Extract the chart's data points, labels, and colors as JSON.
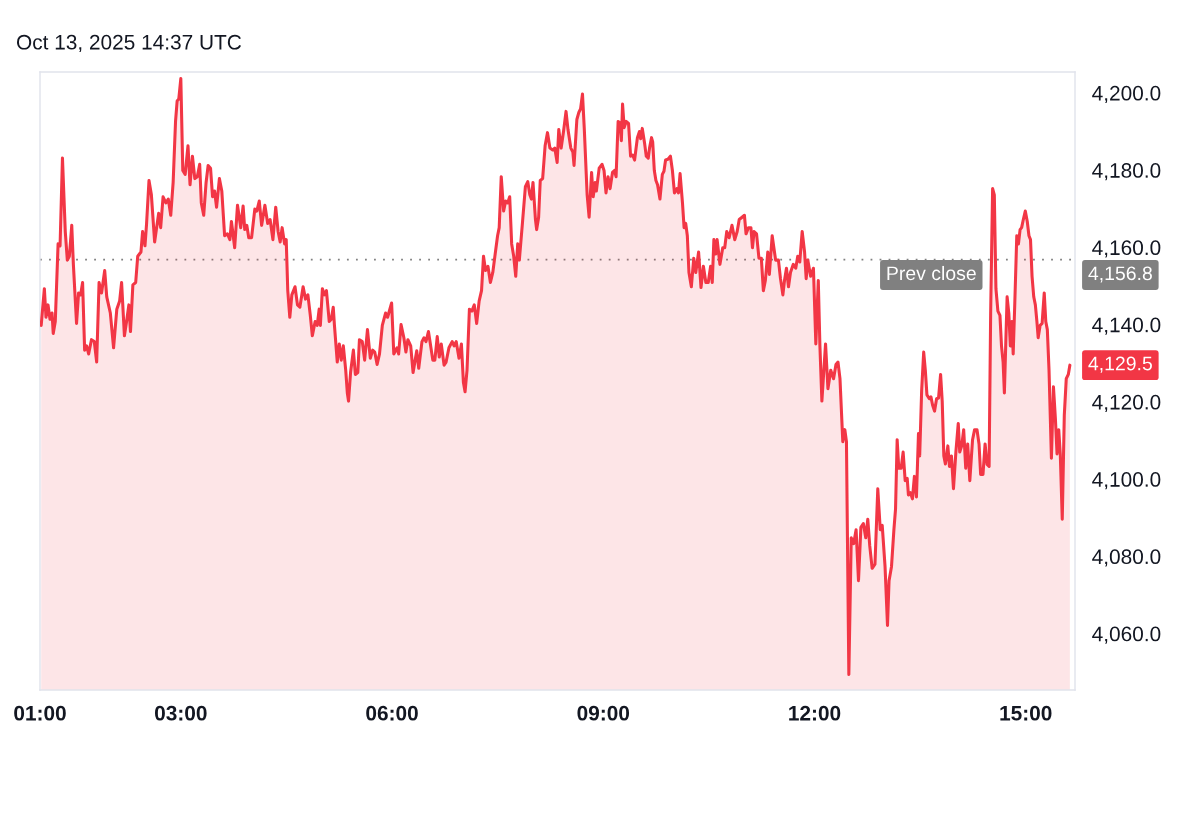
{
  "chart_data": {
    "type": "area",
    "color": "#f23645",
    "annotations": [
      "Oct 13, 2025 14:37 UTC",
      {
        "text": "4,156.8",
        "x": 15.627,
        "y": 4156.8
      },
      {
        "text": "4,129.5",
        "x": 15.627,
        "y": 4129.5
      }
    ],
    "ref_lines": [
      {
        "axis": "y",
        "value": 4156.8,
        "label": "Prev close",
        "color": "#808080",
        "line_style": "dotted"
      }
    ],
    "xlim": [
      1.0,
      15.7
    ],
    "ylim": [
      4045.4,
      4205.4
    ],
    "xticks": [
      {
        "value": 1,
        "label": "01:00"
      },
      {
        "value": 3,
        "label": "03:00"
      },
      {
        "value": 6,
        "label": "06:00"
      },
      {
        "value": 9,
        "label": "09:00"
      },
      {
        "value": 12,
        "label": "12:00"
      },
      {
        "value": 15,
        "label": "15:00"
      }
    ],
    "yticks": [
      {
        "value": 4060,
        "label": "4,060.0"
      },
      {
        "value": 4080,
        "label": "4,080.0"
      },
      {
        "value": 4100,
        "label": "4,100.0"
      },
      {
        "value": 4120,
        "label": "4,120.0"
      },
      {
        "value": 4140,
        "label": "4,140.0"
      },
      {
        "value": 4160,
        "label": "4,160.0"
      },
      {
        "value": 4180,
        "label": "4,180.0"
      },
      {
        "value": 4200,
        "label": "4,200.0"
      }
    ],
    "x": [
      1.017,
      1.062,
      1.085,
      1.114,
      1.142,
      1.171,
      1.188,
      1.217,
      1.257,
      1.285,
      1.319,
      1.359,
      1.388,
      1.417,
      1.451,
      1.474,
      1.519,
      1.548,
      1.577,
      1.605,
      1.634,
      1.662,
      1.691,
      1.731,
      1.771,
      1.805,
      1.839,
      1.874,
      1.919,
      1.948,
      1.999,
      2.045,
      2.091,
      2.131,
      2.159,
      2.199,
      2.234,
      2.262,
      2.285,
      2.319,
      2.359,
      2.388,
      2.434,
      2.457,
      2.491,
      2.514,
      2.548,
      2.582,
      2.628,
      2.685,
      2.714,
      2.748,
      2.788,
      2.822,
      2.857,
      2.891,
      2.925,
      2.948,
      2.971,
      3.0,
      3.028,
      3.062,
      3.102,
      3.131,
      3.165,
      3.199,
      3.234,
      3.268,
      3.291,
      3.325,
      3.359,
      3.388,
      3.422,
      3.451,
      3.479,
      3.508,
      3.548,
      3.582,
      3.622,
      3.662,
      3.697,
      3.719,
      3.765,
      3.805,
      3.851,
      3.885,
      3.908,
      3.937,
      3.965,
      4.005,
      4.051,
      4.079,
      4.114,
      4.148,
      4.194,
      4.234,
      4.268,
      4.308,
      4.348,
      4.382,
      4.411,
      4.439,
      4.474,
      4.497,
      4.519,
      4.548,
      4.577,
      4.622,
      4.657,
      4.691,
      4.737,
      4.771,
      4.805,
      4.839,
      4.868,
      4.908,
      4.937,
      4.965,
      4.982,
      5.011,
      5.039,
      5.068,
      5.108,
      5.137,
      5.165,
      5.182,
      5.222,
      5.251,
      5.279,
      5.308,
      5.342,
      5.365,
      5.382,
      5.411,
      5.451,
      5.479,
      5.514,
      5.537,
      5.577,
      5.611,
      5.651,
      5.691,
      5.725,
      5.754,
      5.788,
      5.822,
      5.862,
      5.908,
      5.937,
      5.994,
      6.025,
      6.071,
      6.094,
      6.128,
      6.168,
      6.197,
      6.225,
      6.265,
      6.299,
      6.351,
      6.379,
      6.425,
      6.454,
      6.482,
      6.517,
      6.539,
      6.579,
      6.608,
      6.642,
      6.671,
      6.699,
      6.739,
      6.768,
      6.808,
      6.854,
      6.882,
      6.911,
      6.951,
      6.985,
      7.014,
      7.037,
      7.065,
      7.099,
      7.134,
      7.168,
      7.202,
      7.237,
      7.271,
      7.299,
      7.328,
      7.362,
      7.397,
      7.431,
      7.465,
      7.499,
      7.522,
      7.551,
      7.585,
      7.614,
      7.642,
      7.671,
      7.699,
      7.728,
      7.757,
      7.785,
      7.808,
      7.854,
      7.894,
      7.928,
      7.957,
      7.979,
      8.002,
      8.037,
      8.054,
      8.082,
      8.105,
      8.139,
      8.174,
      8.208,
      8.242,
      8.282,
      8.311,
      8.345,
      8.368,
      8.402,
      8.437,
      8.471,
      8.499,
      8.539,
      8.568,
      8.585,
      8.625,
      8.654,
      8.677,
      8.705,
      8.731,
      8.771,
      8.799,
      8.834,
      8.857,
      8.885,
      8.902,
      8.942,
      8.982,
      9.011,
      9.039,
      9.068,
      9.097,
      9.131,
      9.159,
      9.182,
      9.211,
      9.239,
      9.257,
      9.274,
      9.297,
      9.325,
      9.359,
      9.388,
      9.417,
      9.445,
      9.485,
      9.514,
      9.531,
      9.554,
      9.588,
      9.611,
      9.639,
      9.657,
      9.685,
      9.702,
      9.725,
      9.748,
      9.771,
      9.805,
      9.839,
      9.862,
      9.885,
      9.919,
      9.954,
      9.982,
      10.011,
      10.045,
      10.068,
      10.091,
      10.125,
      10.148,
      10.171,
      10.194,
      10.217,
      10.251,
      10.285,
      10.314,
      10.354,
      10.388,
      10.422,
      10.457,
      10.491,
      10.525,
      10.548,
      10.571,
      10.599,
      10.617,
      10.657,
      10.697,
      10.725,
      10.754,
      10.788,
      10.828,
      10.868,
      10.902,
      10.931,
      10.971,
      11.005,
      11.028,
      11.062,
      11.097,
      11.119,
      11.142,
      11.177,
      11.211,
      11.245,
      11.274,
      11.302,
      11.337,
      11.359,
      11.399,
      11.448,
      11.488,
      11.517,
      11.551,
      11.574,
      11.602,
      11.631,
      11.659,
      11.699,
      11.734,
      11.762,
      11.791,
      11.825,
      11.859,
      11.882,
      11.905,
      11.945,
      11.985,
      12.019,
      12.054,
      12.077,
      12.105,
      12.157,
      12.191,
      12.231,
      12.271,
      12.305,
      12.334,
      12.362,
      12.402,
      12.431,
      12.454,
      12.488,
      12.522,
      12.557,
      12.591,
      12.625,
      12.659,
      12.694,
      12.728,
      12.757,
      12.785,
      12.819,
      12.859,
      12.899,
      12.934,
      12.962,
      13.002,
      13.037,
      13.059,
      13.094,
      13.128,
      13.151,
      13.174,
      13.197,
      13.231,
      13.259,
      13.288,
      13.317,
      13.334,
      13.362,
      13.391,
      13.419,
      13.448,
      13.477,
      13.494,
      13.522,
      13.551,
      13.574,
      13.597,
      13.631,
      13.654,
      13.677,
      13.705,
      13.734,
      13.762,
      13.791,
      13.814,
      13.837,
      13.859,
      13.894,
      13.917,
      13.945,
      13.974,
      14.008,
      14.042,
      14.063,
      14.091,
      14.119,
      14.148,
      14.176,
      14.206,
      14.245,
      14.274,
      14.308,
      14.337,
      14.36,
      14.393,
      14.423,
      14.451,
      14.48,
      14.502,
      14.53,
      14.554,
      14.577,
      14.605,
      14.634,
      14.656,
      14.679,
      14.697,
      14.719,
      14.736,
      14.76,
      14.782,
      14.805,
      14.822,
      14.845,
      14.873,
      14.897,
      14.92,
      14.942,
      14.966,
      14.994,
      15.022,
      15.046,
      15.068,
      15.09,
      15.114,
      15.137,
      15.159,
      15.177,
      15.205,
      15.233,
      15.263,
      15.285,
      15.307,
      15.331,
      15.365,
      15.394,
      15.422,
      15.445,
      15.469,
      15.491,
      15.519,
      15.548,
      15.576,
      15.605,
      15.627
    ],
    "values": [
      4139.8,
      4149.3,
      4141.9,
      4145.1,
      4141.4,
      4143.0,
      4137.7,
      4140.8,
      4160.9,
      4160.4,
      4183.1,
      4164.1,
      4156.7,
      4157.7,
      4165.7,
      4155.6,
      4140.3,
      4148.2,
      4147.7,
      4150.9,
      4133.4,
      4134.5,
      4132.4,
      4136.1,
      4135.6,
      4130.3,
      4150.9,
      4148.2,
      4154.0,
      4147.2,
      4143.0,
      4134.0,
      4144.0,
      4146.1,
      4150.9,
      4137.1,
      4141.4,
      4145.1,
      4138.2,
      4150.3,
      4150.9,
      4157.7,
      4158.8,
      4164.1,
      4160.4,
      4166.2,
      4177.3,
      4173.6,
      4161.4,
      4168.8,
      4165.1,
      4173.1,
      4171.5,
      4172.5,
      4168.3,
      4176.8,
      4192.6,
      4197.9,
      4198.4,
      4203.7,
      4179.9,
      4178.9,
      4186.3,
      4176.2,
      4183.6,
      4177.8,
      4178.3,
      4181.5,
      4171.5,
      4168.3,
      4176.8,
      4181.2,
      4180.5,
      4173.1,
      4174.6,
      4170.4,
      4177.8,
      4174.6,
      4163.0,
      4163.5,
      4162.0,
      4166.7,
      4159.9,
      4170.9,
      4165.1,
      4170.7,
      4164.6,
      4165.7,
      4162.5,
      4162.5,
      4169.9,
      4169.4,
      4172.0,
      4165.7,
      4170.9,
      4166.2,
      4167.2,
      4162.0,
      4170.4,
      4164.1,
      4161.4,
      4165.1,
      4160.9,
      4162.0,
      4148.8,
      4141.9,
      4147.7,
      4149.8,
      4145.1,
      4144.5,
      4149.8,
      4146.6,
      4147.7,
      4142.4,
      4137.1,
      4140.8,
      4139.8,
      4144.0,
      4139.8,
      4149.3,
      4147.7,
      4148.8,
      4140.8,
      4141.4,
      4144.5,
      4139.8,
      4130.3,
      4135.0,
      4130.8,
      4134.5,
      4128.2,
      4122.3,
      4120.2,
      4127.6,
      4133.4,
      4127.1,
      4127.6,
      4136.1,
      4135.6,
      4130.8,
      4138.7,
      4131.3,
      4133.4,
      4132.9,
      4129.7,
      4132.4,
      4139.8,
      4143.0,
      4141.9,
      4145.6,
      4132.4,
      4134.0,
      4132.4,
      4140.0,
      4136.6,
      4132.9,
      4136.1,
      4134.5,
      4127.6,
      4133.2,
      4128.7,
      4135.6,
      4136.6,
      4135.6,
      4138.2,
      4135.6,
      4130.8,
      4130.8,
      4136.9,
      4131.6,
      4135.0,
      4129.5,
      4130.3,
      4134.0,
      4135.6,
      4134.5,
      4135.6,
      4131.3,
      4135.0,
      4125.0,
      4122.6,
      4128.2,
      4144.0,
      4143.5,
      4145.1,
      4140.3,
      4146.1,
      4148.8,
      4157.7,
      4154.0,
      4155.1,
      4150.9,
      4153.5,
      4158.3,
      4163.0,
      4165.1,
      4178.3,
      4169.4,
      4172.0,
      4171.5,
      4173.1,
      4160.9,
      4157.7,
      4152.5,
      4160.9,
      4156.7,
      4166.7,
      4175.7,
      4177.0,
      4173.6,
      4172.5,
      4176.8,
      4167.2,
      4164.6,
      4167.8,
      4177.3,
      4177.8,
      4186.3,
      4189.7,
      4185.7,
      4185.2,
      4185.7,
      4182.0,
      4190.5,
      4185.7,
      4190.2,
      4195.2,
      4190.5,
      4185.7,
      4184.7,
      4181.2,
      4193.1,
      4195.0,
      4195.8,
      4199.7,
      4190.5,
      4173.6,
      4167.8,
      4179.4,
      4173.1,
      4176.8,
      4174.6,
      4180.5,
      4181.5,
      4179.9,
      4174.1,
      4178.3,
      4175.2,
      4179.4,
      4179.9,
      4178.3,
      4192.6,
      4192.1,
      4187.6,
      4197.1,
      4191.0,
      4192.6,
      4192.1,
      4183.6,
      4183.9,
      4182.6,
      4188.4,
      4190.0,
      4188.1,
      4190.8,
      4186.8,
      4183.6,
      4183.1,
      4185.7,
      4188.4,
      4187.3,
      4179.9,
      4177.3,
      4176.2,
      4172.5,
      4178.9,
      4179.7,
      4182.6,
      4182.8,
      4183.6,
      4179.9,
      4174.1,
      4175.2,
      4174.1,
      4179.1,
      4171.5,
      4165.1,
      4166.2,
      4163.0,
      4153.5,
      4149.8,
      4157.2,
      4153.5,
      4158.8,
      4149.6,
      4155.1,
      4150.9,
      4150.9,
      4155.1,
      4150.9,
      4162.0,
      4158.3,
      4162.0,
      4155.6,
      4159.9,
      4159.9,
      4164.1,
      4162.5,
      4165.7,
      4162.0,
      4164.1,
      4167.2,
      4167.8,
      4168.3,
      4163.5,
      4165.1,
      4165.1,
      4159.9,
      4164.1,
      4163.5,
      4157.2,
      4157.2,
      4148.8,
      4151.4,
      4158.8,
      4153.0,
      4163.0,
      4156.7,
      4156.7,
      4151.9,
      4147.7,
      4151.4,
      4154.6,
      4149.8,
      4153.5,
      4155.6,
      4154.6,
      4157.7,
      4156.2,
      4164.1,
      4158.8,
      4151.9,
      4156.7,
      4152.5,
      4154.6,
      4135.0,
      4151.4,
      4134.5,
      4120.2,
      4135.0,
      4123.4,
      4128.2,
      4126.0,
      4129.7,
      4130.3,
      4126.0,
      4109.7,
      4112.8,
      4109.7,
      4049.4,
      4084.8,
      4083.3,
      4086.9,
      4073.7,
      4087.5,
      4088.5,
      4084.8,
      4089.6,
      4082.7,
      4076.9,
      4078.0,
      4097.5,
      4086.9,
      4088.0,
      4077.4,
      4062.1,
      4073.7,
      4077.4,
      4086.9,
      4092.2,
      4110.2,
      4102.8,
      4102.8,
      4107.0,
      4099.6,
      4100.2,
      4095.9,
      4096.5,
      4094.9,
      4100.7,
      4095.4,
      4111.8,
      4106.0,
      4122.9,
      4132.9,
      4128.2,
      4121.8,
      4120.8,
      4121.3,
      4119.2,
      4117.6,
      4120.8,
      4121.0,
      4127.1,
      4120.2,
      4106.0,
      4103.9,
      4108.6,
      4103.3,
      4106.0,
      4097.5,
      4107.0,
      4114.4,
      4107.0,
      4108.6,
      4112.8,
      4102.8,
      4109.1,
      4099.6,
      4110.2,
      4112.8,
      4112.8,
      4109.1,
      4101.2,
      4101.2,
      4109.1,
      4103.8,
      4103.3,
      4142.9,
      4175.2,
      4173.6,
      4149.3,
      4143.5,
      4142.4,
      4134.5,
      4130.3,
      4122.3,
      4136.6,
      4147.2,
      4142.9,
      4134.5,
      4140.8,
      4132.4,
      4145.6,
      4163.0,
      4160.9,
      4164.6,
      4165.1,
      4167.2,
      4169.4,
      4166.7,
      4163.0,
      4162.0,
      4152.5,
      4147.2,
      4145.1,
      4140.8,
      4136.6,
      4139.8,
      4140.3,
      4148.2,
      4140.8,
      4138.7,
      4128.2,
      4105.4,
      4123.9,
      4115.5,
      4106.5,
      4112.8,
      4106.5,
      4089.6,
      4116.5,
      4126.0,
      4127.1,
      4129.5
    ]
  }
}
